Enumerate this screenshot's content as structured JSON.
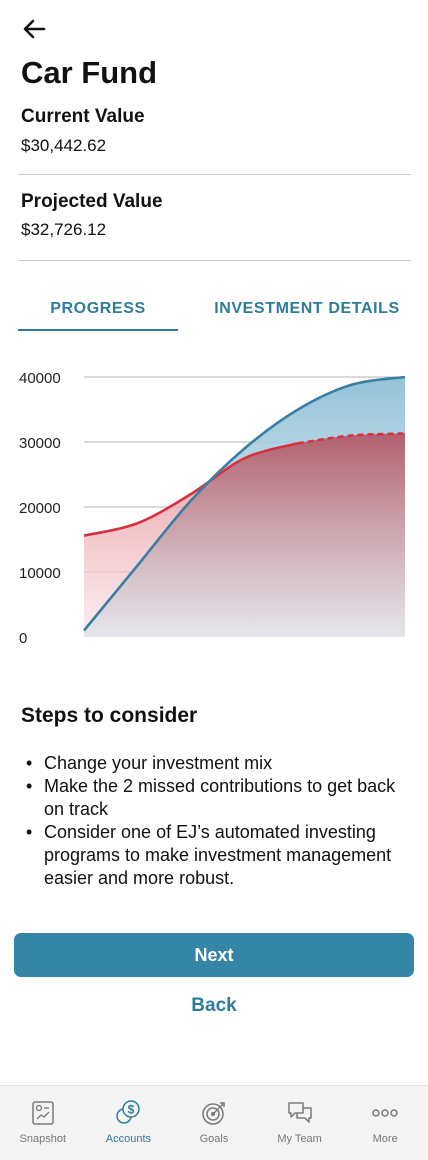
{
  "header": {
    "title": "Car Fund",
    "back_icon": "arrow-left-icon"
  },
  "stats": {
    "current_label": "Current Value",
    "current_value": "$30,442.62",
    "projected_label": "Projected Value",
    "projected_value": "$32,726.12"
  },
  "tabs": [
    {
      "label": "PROGRESS",
      "active": true
    },
    {
      "label": "INVESTMENT DETAILS",
      "active": false
    }
  ],
  "chart_data": {
    "type": "area",
    "y_ticks": [
      "40000",
      "30000",
      "20000",
      "10000",
      "0"
    ],
    "ylim": [
      0,
      40000
    ],
    "grid": true,
    "series": [
      {
        "color": "#d7303f",
        "style": "solid then dashed",
        "values": [
          15600,
          17500,
          22000,
          27500,
          29800,
          31000,
          31300
        ]
      },
      {
        "color": "#3a7fa3",
        "style": "solid",
        "values": [
          1000,
          11000,
          21000,
          29000,
          35000,
          38800,
          40000
        ]
      }
    ],
    "colors": {
      "red": "#d7303f",
      "blue": "#3a7fa3"
    }
  },
  "steps": {
    "title": "Steps to consider",
    "items": [
      "Change your investment mix",
      "Make the 2 missed contributions to get back on track",
      "Consider one of EJ’s automated investing programs to make investment management easier and more robust."
    ]
  },
  "actions": {
    "next_label": "Next",
    "back_label": "Back"
  },
  "nav": {
    "items": [
      {
        "label": "Snapshot",
        "icon": "snapshot-icon",
        "active": false
      },
      {
        "label": "Accounts",
        "icon": "accounts-icon",
        "active": true
      },
      {
        "label": "Goals",
        "icon": "goals-icon",
        "active": false
      },
      {
        "label": "My Team",
        "icon": "chat-icon",
        "active": false
      },
      {
        "label": "More",
        "icon": "more-icon",
        "active": false
      }
    ]
  }
}
